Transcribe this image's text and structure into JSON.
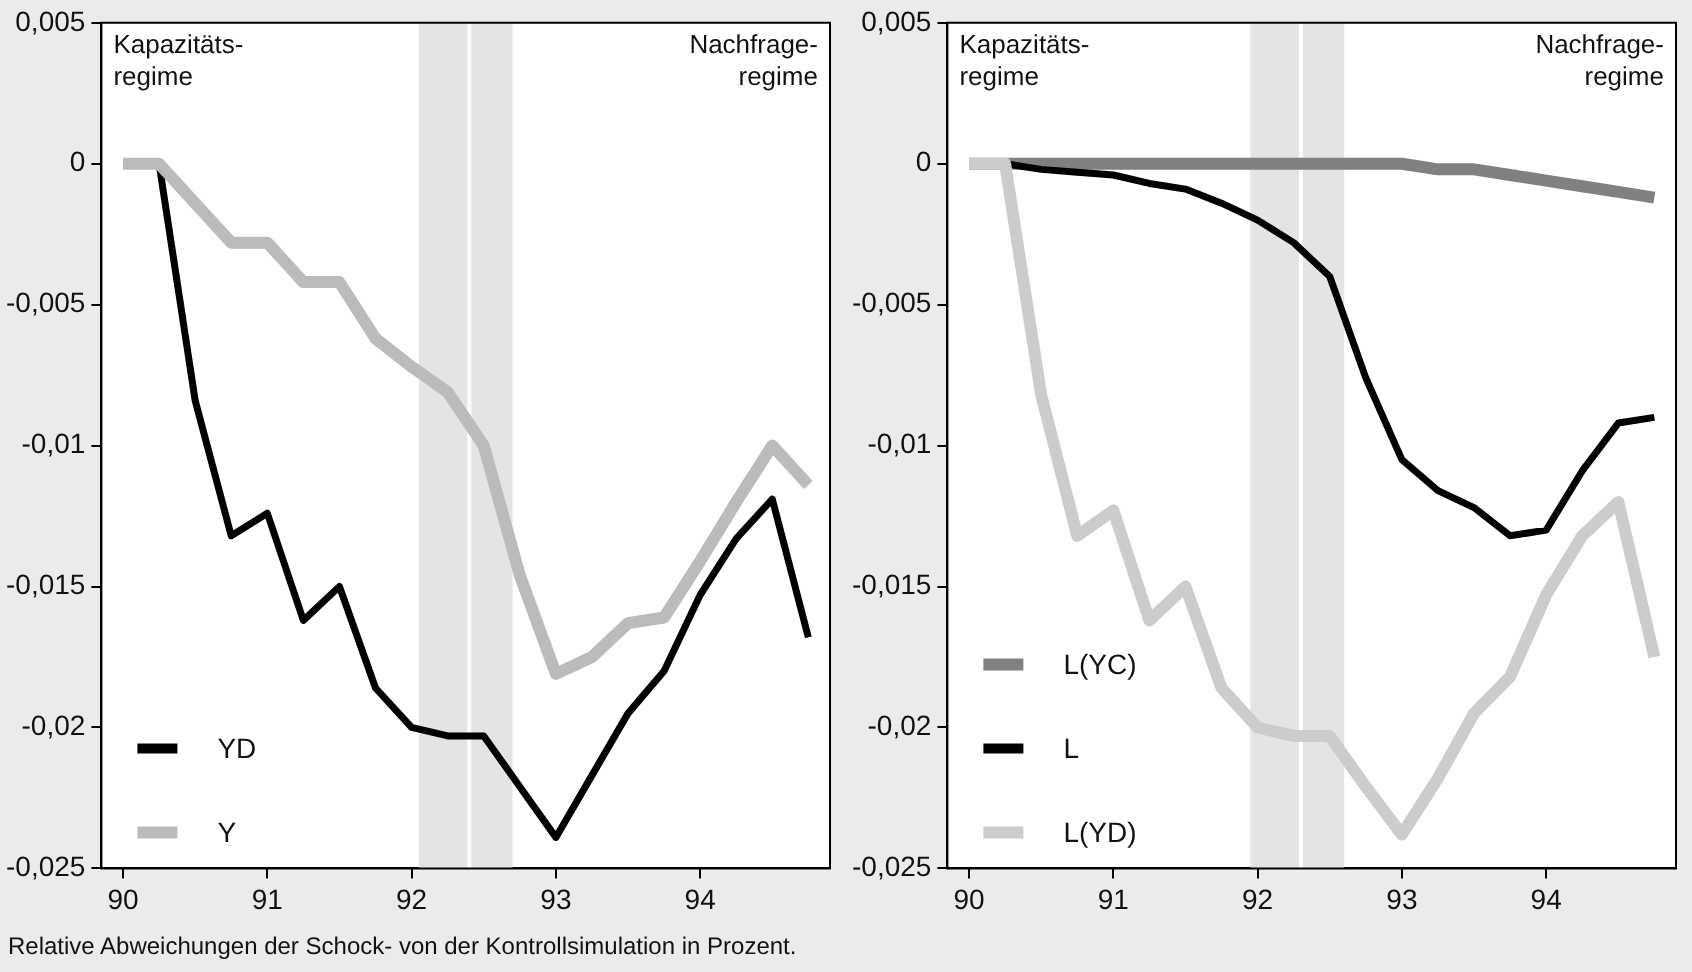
{
  "chart_data": [
    {
      "type": "line",
      "x": [
        90,
        90.25,
        90.5,
        90.75,
        91,
        91.25,
        91.5,
        91.75,
        92,
        92.25,
        92.5,
        92.75,
        93,
        93.25,
        93.5,
        93.75,
        94,
        94.25,
        94.5,
        94.75
      ],
      "series": [
        {
          "name": "YD",
          "color": "#000000",
          "values": [
            0,
            0,
            -0.0084,
            -0.0132,
            -0.0124,
            -0.0162,
            -0.015,
            -0.0186,
            -0.02,
            -0.0203,
            -0.0203,
            -0.0221,
            -0.0239,
            -0.0217,
            -0.0195,
            -0.018,
            -0.0153,
            -0.0133,
            -0.0119,
            -0.0168
          ]
        },
        {
          "name": "Y",
          "color": "#bbbbbb",
          "values": [
            0,
            0,
            -0.0014,
            -0.0028,
            -0.0028,
            -0.0042,
            -0.0042,
            -0.0062,
            -0.0072,
            -0.0081,
            -0.01,
            -0.0146,
            -0.0181,
            -0.0175,
            -0.0163,
            -0.0161,
            -0.0141,
            -0.012,
            -0.01,
            -0.0114
          ]
        }
      ],
      "xlim": [
        89.85,
        94.9
      ],
      "xticks": [
        90,
        91,
        92,
        93,
        94
      ],
      "ylim": [
        -0.025,
        0.005
      ],
      "yticks": [
        {
          "value": 0.005,
          "label": "0,005"
        },
        0,
        {
          "value": -0.005,
          "label": "-0,005"
        },
        {
          "value": -0.01,
          "label": "-0,01"
        },
        {
          "value": -0.015,
          "label": "-0,015"
        },
        {
          "value": -0.02,
          "label": "-0,02"
        },
        {
          "value": -0.025,
          "label": "-0,025"
        }
      ],
      "bands": [
        {
          "axis": "x",
          "from": 92.05,
          "to": 92.7,
          "color": "#e4e4e4"
        }
      ],
      "ref_lines": [
        {
          "axis": "x",
          "value": 92.4,
          "color": "#ffffff"
        }
      ],
      "annotations": [
        "Kapazitäts-\nregime",
        "Nachfrage-\nregime",
        "Relative Abweichungen der Schock- von der Kontrollsimulation in Prozent."
      ],
      "legend": "bottom left",
      "grid": false
    },
    {
      "type": "line",
      "x": [
        90,
        90.25,
        90.5,
        90.75,
        91,
        91.25,
        91.5,
        91.75,
        92,
        92.25,
        92.5,
        92.75,
        93,
        93.25,
        93.5,
        93.75,
        94,
        94.25,
        94.5,
        94.75
      ],
      "series": [
        {
          "name": "L(YC)",
          "color": "#808080",
          "values": [
            0,
            0,
            0,
            0,
            0,
            0,
            0,
            0,
            0,
            0,
            0,
            0,
            0,
            -0.0002,
            -0.0002,
            -0.0004,
            -0.0006,
            -0.0008,
            -0.001,
            -0.0012
          ]
        },
        {
          "name": "L",
          "color": "#000000",
          "values": [
            0,
            0,
            -0.0002,
            -0.0003,
            -0.0004,
            -0.0007,
            -0.0009,
            -0.0014,
            -0.002,
            -0.0028,
            -0.004,
            -0.0076,
            -0.0105,
            -0.0116,
            -0.0122,
            -0.0132,
            -0.013,
            -0.0109,
            -0.0092,
            -0.009
          ]
        },
        {
          "name": "L(YD)",
          "color": "#cccccc",
          "values": [
            0,
            0,
            -0.0082,
            -0.0132,
            -0.0123,
            -0.0162,
            -0.015,
            -0.0186,
            -0.02,
            -0.0203,
            -0.0203,
            -0.0221,
            -0.0238,
            -0.0218,
            -0.0195,
            -0.0182,
            -0.0153,
            -0.0132,
            -0.012,
            -0.0175
          ]
        }
      ],
      "xlim": [
        89.85,
        94.9
      ],
      "xticks": [
        90,
        91,
        92,
        93,
        94
      ],
      "ylim": [
        -0.025,
        0.005
      ],
      "yticks": [
        {
          "value": 0.005,
          "label": "0,005"
        },
        0,
        {
          "value": -0.005,
          "label": "-0,005"
        },
        {
          "value": -0.01,
          "label": "-0,01"
        },
        {
          "value": -0.015,
          "label": "-0,015"
        },
        {
          "value": -0.02,
          "label": "-0,02"
        },
        {
          "value": -0.025,
          "label": "-0,025"
        }
      ],
      "bands": [
        {
          "axis": "x",
          "from": 91.95,
          "to": 92.6,
          "color": "#e4e4e4"
        }
      ],
      "ref_lines": [
        {
          "axis": "x",
          "value": 92.3,
          "color": "#ffffff"
        }
      ],
      "annotations": [
        "Kapazitäts-\nregime",
        "Nachfrage-\nregime"
      ],
      "legend": "bottom left",
      "grid": false
    }
  ]
}
